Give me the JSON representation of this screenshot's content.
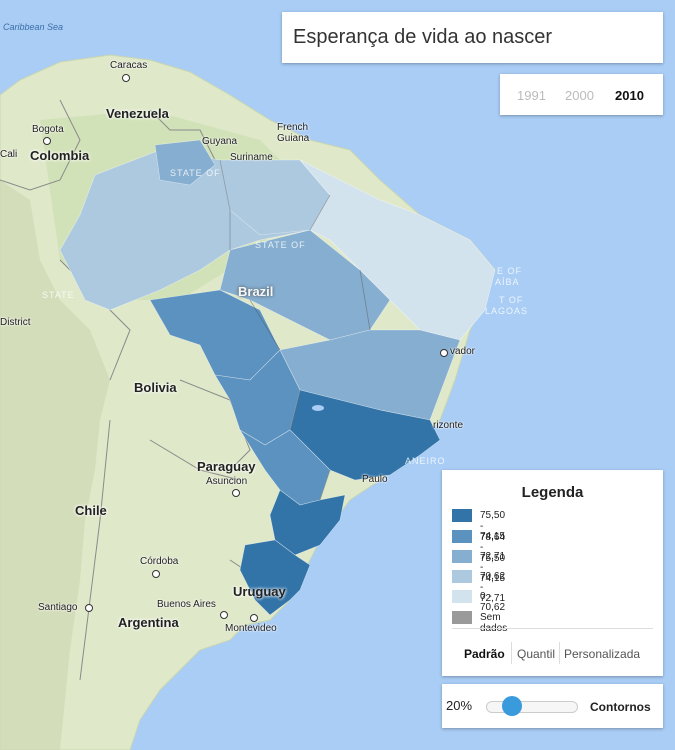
{
  "title": "Esperança de vida ao nascer",
  "years": [
    {
      "label": "1991",
      "active": false
    },
    {
      "label": "2000",
      "active": false
    },
    {
      "label": "2010",
      "active": true
    }
  ],
  "legend": {
    "title": "Legenda",
    "items": [
      {
        "range": "75,50 - 78,64",
        "color": "#3274a8"
      },
      {
        "range": "74,15 - 75,50",
        "color": "#5b92c0"
      },
      {
        "range": "72,71 - 74,15",
        "color": "#86aed0"
      },
      {
        "range": "70,62 - 72,71",
        "color": "#adc9df"
      },
      {
        "range": "0 - 70,62",
        "color": "#d3e3ee"
      },
      {
        "range": "Sem dados",
        "color": "#9a9a9a"
      }
    ],
    "tabs": [
      {
        "label": "Padrão",
        "active": true
      },
      {
        "label": "Quantil",
        "active": false
      },
      {
        "label": "Personalizada",
        "active": false
      }
    ]
  },
  "opacity": {
    "value": "20%",
    "level": 0.2,
    "contours_label": "Contornos"
  },
  "map_labels": {
    "caribbean_sea": "Caribbean Sea",
    "caracas": "Caracas",
    "venezuela": "Venezuela",
    "bogota": "Bogota",
    "colombia": "Colombia",
    "guyana": "Guyana",
    "suriname": "Suriname",
    "french_guiana_1": "French",
    "french_guiana_2": "Guiana",
    "cali": "Cali",
    "brazil": "Brazil",
    "district": "District",
    "bolivia": "Bolivia",
    "paraguay": "Paraguay",
    "asuncion": "Asuncion",
    "chile": "Chile",
    "cordoba": "Córdoba",
    "uruguay": "Uruguay",
    "santiago": "Santiago",
    "buenos_aires": "Buenos Aires",
    "argentina": "Argentina",
    "montevideo": "Montevideo",
    "paulo": "Paulo",
    "vador": "vador",
    "rizonte": "rizonte",
    "aneiro": "ANEIRO",
    "e_of": "E OF",
    "aiba": "AÍBA",
    "t_of": "T OF",
    "lagoas": "LAGOAS",
    "state_of_1": "STATE OF",
    "state_of_2": "STATE OF",
    "state_trunc": "STATE"
  }
}
